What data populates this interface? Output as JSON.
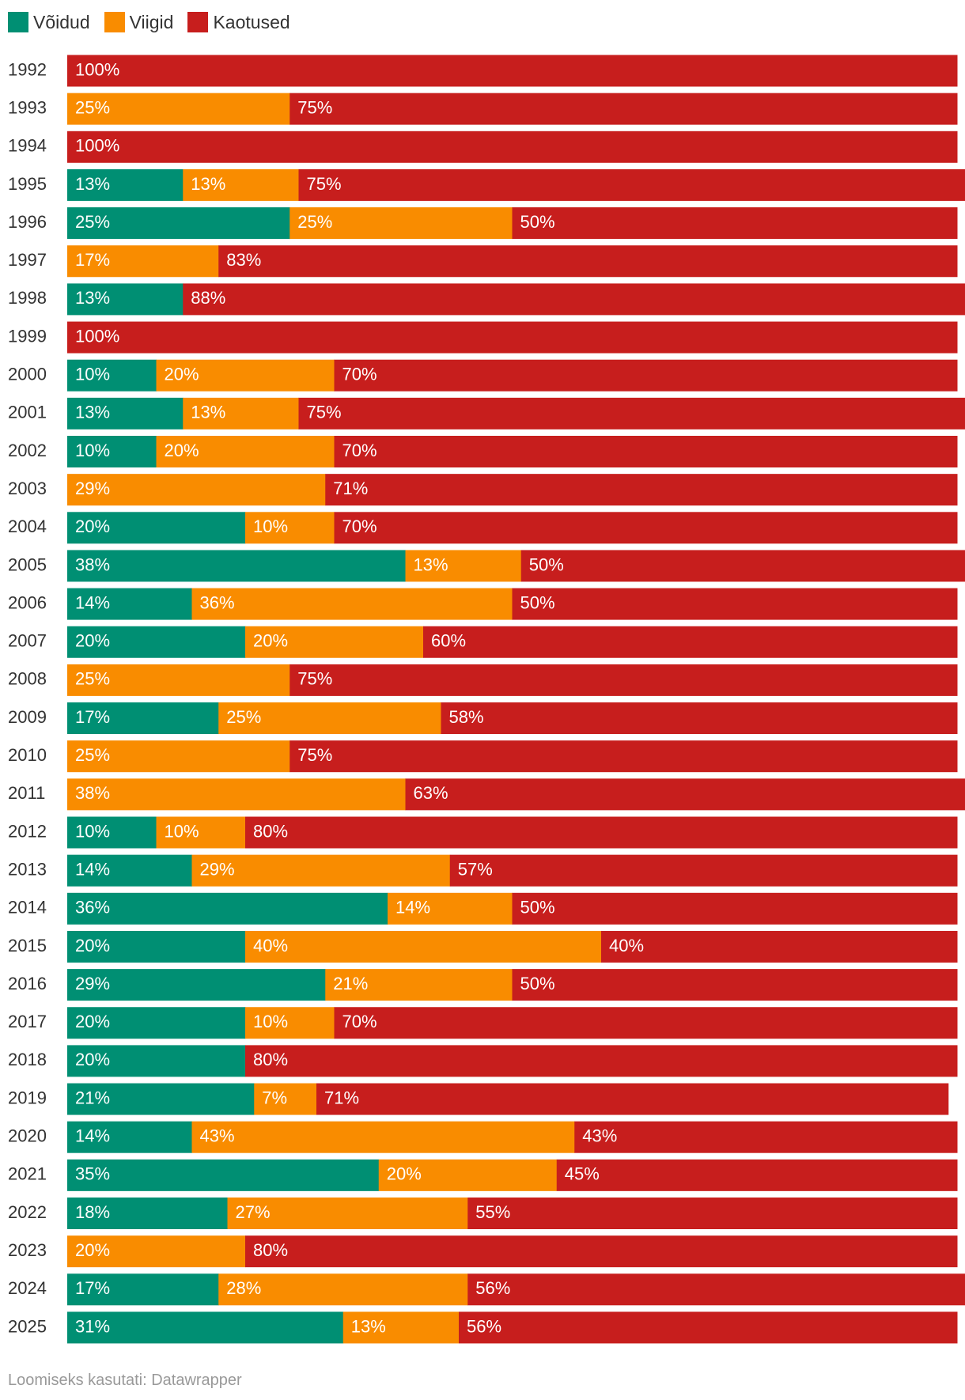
{
  "chart_data": {
    "type": "bar",
    "orientation": "horizontal",
    "stacked": true,
    "normalized_percent": true,
    "legend": [
      "Võidud",
      "Viigid",
      "Kaotused"
    ],
    "colors": {
      "Võidud": "#008f73",
      "Viigid": "#f98c00",
      "Kaotused": "#c71e1d"
    },
    "categories": [
      "1992",
      "1993",
      "1994",
      "1995",
      "1996",
      "1997",
      "1998",
      "1999",
      "2000",
      "2001",
      "2002",
      "2003",
      "2004",
      "2005",
      "2006",
      "2007",
      "2008",
      "2009",
      "2010",
      "2011",
      "2012",
      "2013",
      "2014",
      "2015",
      "2016",
      "2017",
      "2018",
      "2019",
      "2020",
      "2021",
      "2022",
      "2023",
      "2024",
      "2025"
    ],
    "series": [
      {
        "name": "Võidud",
        "values": [
          0,
          0,
          0,
          13,
          25,
          0,
          13,
          0,
          10,
          13,
          10,
          0,
          20,
          38,
          14,
          20,
          0,
          17,
          0,
          0,
          10,
          14,
          36,
          20,
          29,
          20,
          20,
          21,
          14,
          35,
          18,
          0,
          17,
          31
        ]
      },
      {
        "name": "Viigid",
        "values": [
          0,
          25,
          0,
          13,
          25,
          17,
          0,
          0,
          20,
          13,
          20,
          29,
          10,
          13,
          36,
          20,
          25,
          25,
          25,
          38,
          10,
          29,
          14,
          40,
          21,
          10,
          0,
          7,
          43,
          20,
          27,
          20,
          28,
          13
        ]
      },
      {
        "name": "Kaotused",
        "values": [
          100,
          75,
          100,
          75,
          50,
          83,
          88,
          100,
          70,
          75,
          70,
          71,
          70,
          50,
          50,
          60,
          75,
          58,
          75,
          63,
          80,
          57,
          50,
          40,
          50,
          70,
          80,
          71,
          43,
          45,
          55,
          80,
          56,
          56
        ]
      }
    ],
    "xlim": [
      0,
      100
    ],
    "value_suffix": "%"
  },
  "footer": {
    "credit": "Loomiseks kasutati: Datawrapper"
  }
}
